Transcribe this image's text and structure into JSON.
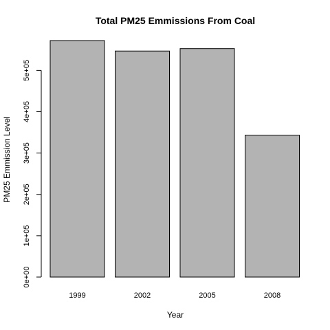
{
  "chart_data": {
    "type": "bar",
    "title": "Total PM25 Emmissions From Coal",
    "xlabel": "Year",
    "ylabel": "PM25 Emmission Level",
    "categories": [
      "1999",
      "2002",
      "2005",
      "2008"
    ],
    "values": [
      572126,
      546789,
      552675,
      343432
    ],
    "ylim": [
      0,
      572126
    ],
    "yticks": [
      0,
      100000,
      200000,
      300000,
      400000,
      500000
    ],
    "ytick_labels": [
      "0e+00",
      "1e+05",
      "2e+05",
      "3e+05",
      "4e+05",
      "5e+05"
    ],
    "bar_color": "#b3b3b3",
    "grid": false
  }
}
